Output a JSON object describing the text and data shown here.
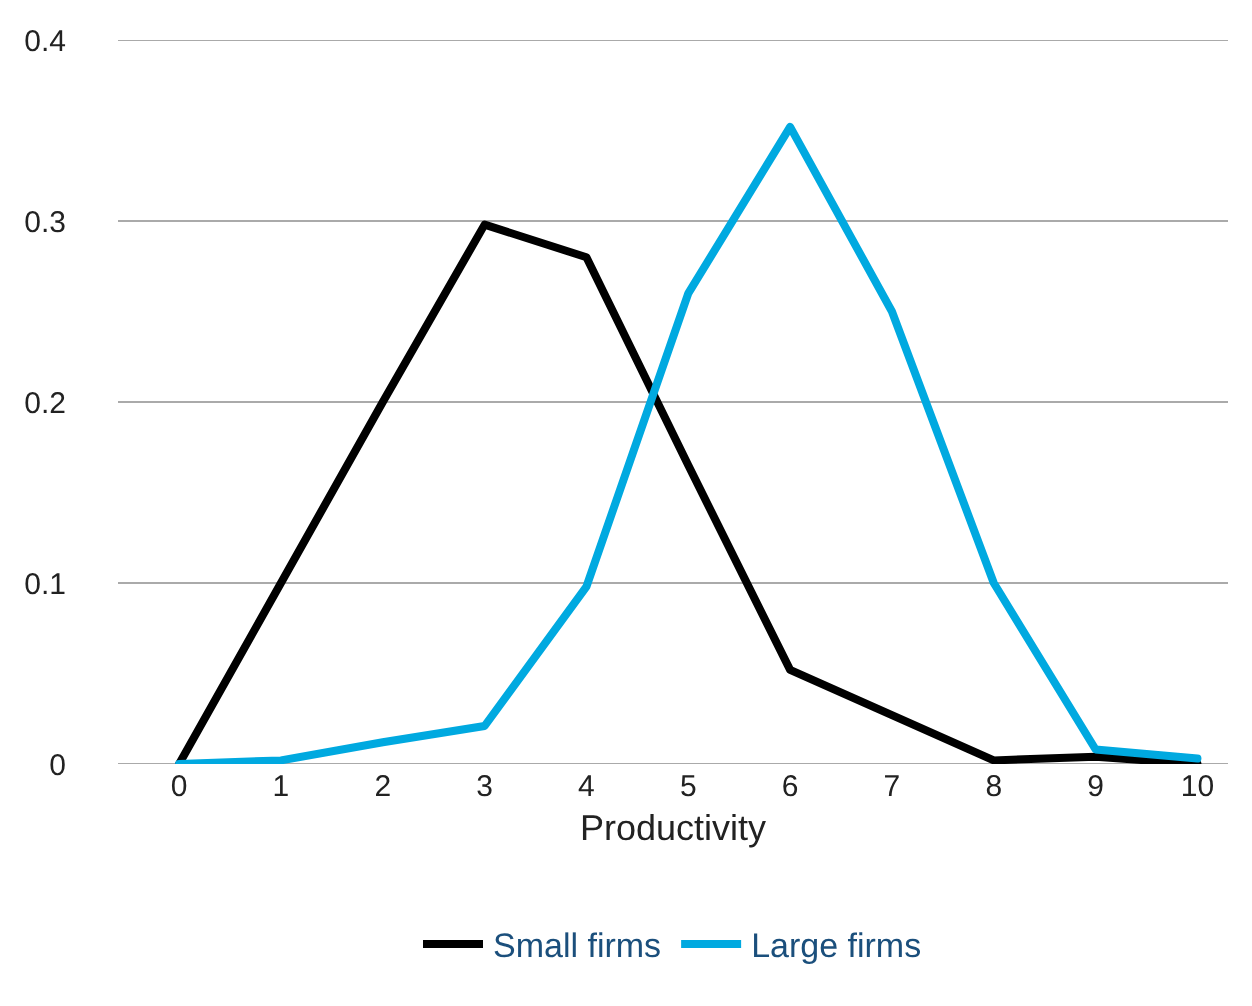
{
  "chart_data": {
    "type": "line",
    "xlabel": "Productivity",
    "x": [
      0,
      1,
      2,
      3,
      4,
      5,
      6,
      7,
      8,
      9,
      10
    ],
    "series": [
      {
        "name": "Small firms",
        "color": "#000000",
        "values": [
          0,
          0.1,
          0.2,
          0.298,
          0.28,
          0.165,
          0.052,
          0.027,
          0.002,
          0.004,
          0
        ]
      },
      {
        "name": "Large firms",
        "color": "#00a9e0",
        "values": [
          0,
          0.002,
          0.012,
          0.021,
          0.098,
          0.26,
          0.352,
          0.25,
          0.1,
          0.008,
          0.003
        ]
      }
    ],
    "xlim": [
      -0.6,
      10.3
    ],
    "xticks": [
      0,
      1,
      2,
      3,
      4,
      5,
      6,
      7,
      8,
      9,
      10
    ],
    "ylim": [
      0,
      0.4
    ],
    "yticks": [
      0,
      0.1,
      0.2,
      0.3,
      0.4
    ],
    "grid": "y",
    "legend": "bottom",
    "marker": "none",
    "line_style": "solid"
  }
}
